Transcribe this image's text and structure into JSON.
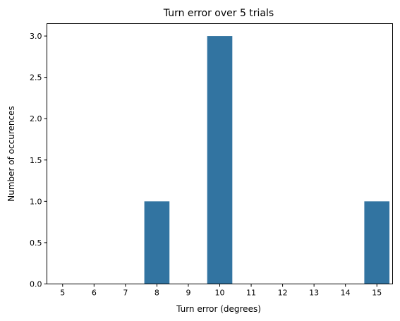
{
  "chart_data": {
    "type": "bar",
    "title": "Turn error over 5 trials",
    "xlabel": "Turn error (degrees)",
    "ylabel": "Number of occurences",
    "categories": [
      "5",
      "6",
      "7",
      "8",
      "9",
      "10",
      "11",
      "12",
      "13",
      "14",
      "15"
    ],
    "values": [
      0,
      0,
      0,
      1,
      0,
      3,
      0,
      0,
      0,
      0,
      1
    ],
    "ylim": [
      0,
      3.15
    ],
    "yticks": [
      "0.0",
      "0.5",
      "1.0",
      "1.5",
      "2.0",
      "2.5",
      "3.0"
    ],
    "grid": false,
    "bar_color": "#3274a1"
  }
}
